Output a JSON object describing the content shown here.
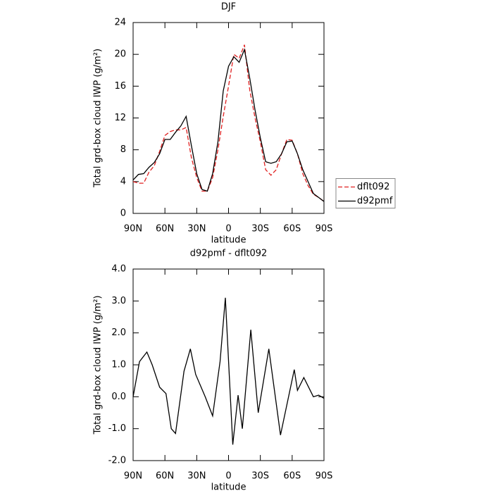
{
  "chart_data": [
    {
      "type": "line",
      "title": "DJF",
      "x_label": "latitude",
      "y_label": "Total grd-box cloud IWP (g/m²)",
      "x": [
        90,
        85,
        80,
        75,
        70,
        65,
        60,
        55,
        50,
        45,
        40,
        35,
        30,
        25,
        20,
        15,
        10,
        5,
        0,
        -5,
        -10,
        -15,
        -20,
        -25,
        -30,
        -35,
        -40,
        -45,
        -50,
        -55,
        -60,
        -65,
        -70,
        -75,
        -80,
        -85,
        -90
      ],
      "series": [
        {
          "name": "dflt092",
          "color": "#e02020",
          "linestyle": "dashed",
          "values": [
            4.0,
            3.8,
            3.8,
            5.2,
            6.0,
            7.8,
            9.8,
            10.3,
            10.5,
            10.5,
            10.8,
            7.0,
            4.5,
            2.8,
            2.8,
            4.5,
            8.0,
            12.2,
            16.0,
            20.0,
            19.5,
            21.2,
            15.5,
            12.0,
            9.0,
            5.5,
            4.8,
            5.5,
            7.5,
            9.3,
            9.2,
            7.5,
            5.0,
            3.5,
            2.4,
            2.0,
            1.5
          ]
        },
        {
          "name": "d92pmf",
          "color": "#000000",
          "linestyle": "solid",
          "values": [
            4.2,
            4.9,
            5.0,
            5.8,
            6.4,
            7.5,
            9.3,
            9.3,
            10.2,
            11.0,
            12.2,
            8.5,
            5.0,
            3.0,
            2.8,
            5.0,
            9.0,
            15.4,
            18.5,
            19.7,
            19.0,
            20.6,
            17.0,
            13.0,
            9.5,
            6.5,
            6.3,
            6.5,
            7.5,
            9.0,
            9.1,
            7.5,
            5.5,
            4.0,
            2.5,
            2.0,
            1.5
          ]
        }
      ],
      "xlim": [
        90,
        -90
      ],
      "xticks": [
        {
          "value": 90,
          "label": "90N"
        },
        {
          "value": 60,
          "label": "60N"
        },
        {
          "value": 30,
          "label": "30N"
        },
        0,
        {
          "value": -30,
          "label": "30S"
        },
        {
          "value": -60,
          "label": "60S"
        },
        {
          "value": -90,
          "label": "90S"
        }
      ],
      "ylim": [
        0,
        24
      ],
      "yticks": [
        0,
        4,
        8,
        12,
        16,
        20,
        24
      ],
      "legend": "right"
    },
    {
      "type": "line",
      "title": "d92pmf - dflt092",
      "x_label": "latitude",
      "y_label": "Total grd-box cloud IWP (g/m²)",
      "x": [
        90,
        84,
        77,
        72,
        65,
        59,
        54,
        50,
        42,
        36,
        31,
        22,
        15,
        8,
        3,
        -4,
        -9,
        -13,
        -21,
        -28,
        -38,
        -49,
        -62,
        -65,
        -71,
        -80,
        -85,
        -90
      ],
      "values": [
        0.0,
        1.1,
        1.4,
        1.0,
        0.3,
        0.1,
        -1.0,
        -1.15,
        0.8,
        1.5,
        0.7,
        0.0,
        -0.6,
        1.1,
        3.1,
        -1.5,
        0.05,
        -1.0,
        2.1,
        -0.5,
        1.5,
        -1.2,
        0.85,
        0.2,
        0.6,
        0.0,
        0.05,
        -0.05
      ],
      "color": "#000000",
      "xlim": [
        90,
        -90
      ],
      "xticks": [
        {
          "value": 90,
          "label": "90N"
        },
        {
          "value": 60,
          "label": "60N"
        },
        {
          "value": 30,
          "label": "30N"
        },
        0,
        {
          "value": -30,
          "label": "30S"
        },
        {
          "value": -60,
          "label": "60S"
        },
        {
          "value": -90,
          "label": "90S"
        }
      ],
      "ylim": [
        -2,
        4
      ],
      "yticks": [
        {
          "value": -2,
          "label": "-2.0"
        },
        {
          "value": -1,
          "label": "-1.0"
        },
        {
          "value": 0,
          "label": "0.0"
        },
        {
          "value": 1,
          "label": "1.0"
        },
        {
          "value": 2,
          "label": "2.0"
        },
        {
          "value": 3,
          "label": "3.0"
        },
        {
          "value": 4,
          "label": "4.0"
        }
      ]
    }
  ]
}
